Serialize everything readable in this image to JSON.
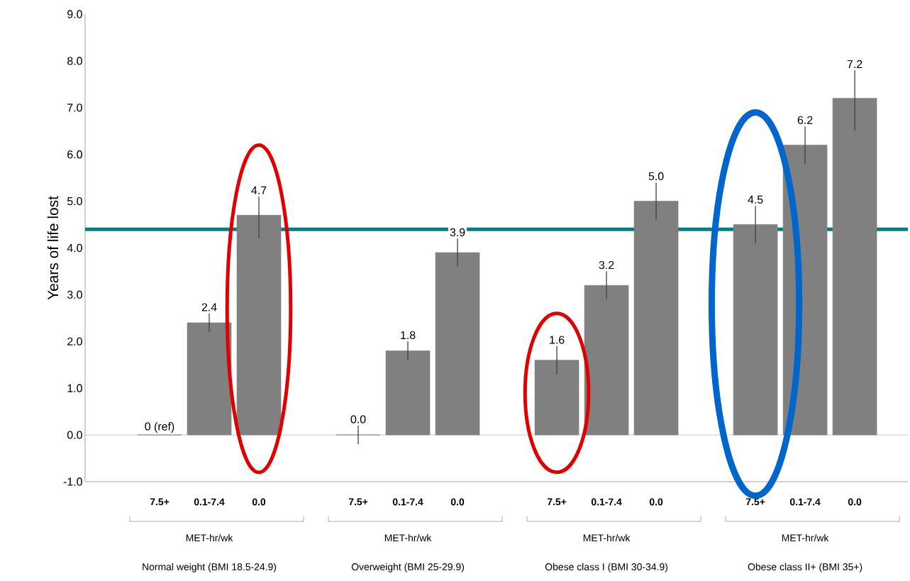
{
  "chart_data": {
    "type": "bar",
    "ylabel": "Years of life lost",
    "categories": [
      "7.5+",
      "0.1-7.4",
      "0.0",
      "7.5+",
      "0.1-7.4",
      "0.0",
      "7.5+",
      "0.1-7.4",
      "0.0",
      "7.5+",
      "0.1-7.4",
      "0.0"
    ],
    "values": [
      0,
      2.4,
      4.7,
      0.0,
      1.8,
      3.9,
      1.6,
      3.2,
      5.0,
      4.5,
      6.2,
      7.2
    ],
    "errors": [
      null,
      [
        2.2,
        2.6
      ],
      [
        4.2,
        5.1
      ],
      [
        -0.2,
        0.2
      ],
      [
        1.6,
        2.0
      ],
      [
        3.6,
        4.2
      ],
      [
        1.3,
        1.9
      ],
      [
        2.9,
        3.5
      ],
      [
        4.6,
        5.4
      ],
      [
        4.1,
        4.9
      ],
      [
        5.8,
        6.6
      ],
      [
        6.5,
        7.8
      ]
    ],
    "value_labels": [
      "0 (ref)",
      "2.4",
      "4.7",
      "0.0",
      "1.8",
      "3.9",
      "1.6",
      "3.2",
      "5.0",
      "4.5",
      "6.2",
      "7.2"
    ],
    "color": "#808080",
    "ylim": [
      -1,
      9
    ],
    "yticks": [
      {
        "value": -1,
        "label": "-1.0"
      },
      {
        "value": 0,
        "label": "0.0"
      },
      {
        "value": 1,
        "label": "1.0"
      },
      {
        "value": 2,
        "label": "2.0"
      },
      {
        "value": 3,
        "label": "3.0"
      },
      {
        "value": 4,
        "label": "4.0"
      },
      {
        "value": 5,
        "label": "5.0"
      },
      {
        "value": 6,
        "label": "6.0"
      },
      {
        "value": 7,
        "label": "7.0"
      },
      {
        "value": 8,
        "label": "8.0"
      },
      {
        "value": 9,
        "label": "9.0"
      }
    ],
    "ref_lines": [
      {
        "axis": "y",
        "value": 0,
        "color": "#c8c8c8"
      },
      {
        "axis": "y",
        "value": 4.4,
        "color": "#008080"
      }
    ],
    "annotations": [
      "MET-hr/wk",
      "MET-hr/wk",
      "MET-hr/wk",
      "MET-hr/wk",
      "Normal weight (BMI 18.5-24.9)",
      "Overweight (BMI 25-29.9)",
      "Obese class I (BMI 30-34.9)",
      "Obese class II+ (BMI 35+)"
    ]
  }
}
